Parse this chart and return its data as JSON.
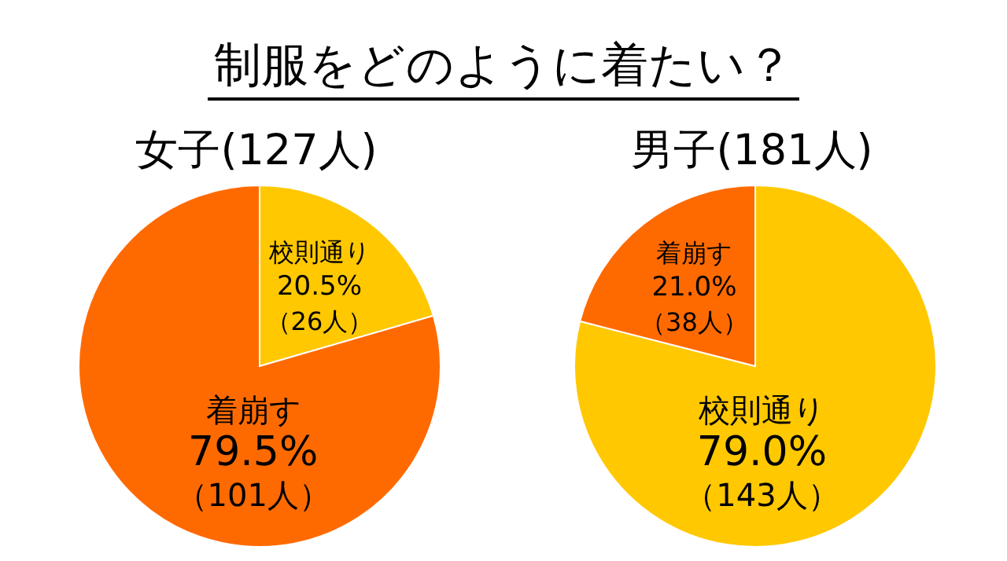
{
  "chart_data": [
    {
      "type": "pie",
      "title": "制服をどのように着たい？",
      "subtitle": "女子(127人)",
      "categories": [
        "校則通り",
        "着崩す"
      ],
      "values": [
        20.5,
        79.5
      ],
      "colors": [
        "#ffc800",
        "#ff6a00"
      ],
      "value_labels": [
        "20.5%",
        "79.5%"
      ],
      "annotations": [
        "（26人）",
        "（101人）"
      ]
    },
    {
      "type": "pie",
      "subtitle": "男子(181人)",
      "categories": [
        "校則通り",
        "着崩す"
      ],
      "values": [
        79.0,
        21.0
      ],
      "colors": [
        "#ffc800",
        "#ff6a00"
      ],
      "value_labels": [
        "79.0%",
        "21.0%"
      ],
      "annotations": [
        "（143人）",
        "（38人）"
      ]
    }
  ]
}
